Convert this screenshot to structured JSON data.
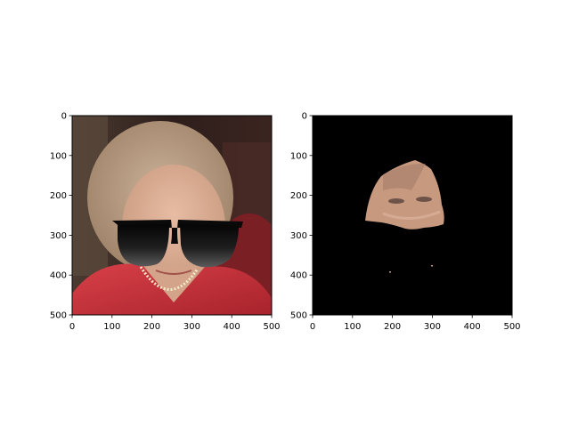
{
  "figure": {
    "background": "#ffffff",
    "subplot_count": 2
  },
  "chart_data": [
    {
      "type": "image",
      "content": "photo of a woman with blonde hair in a red jacket and pearl necklace, with black sunglasses overlaid on the face",
      "xlim": [
        0,
        500
      ],
      "ylim": [
        500,
        0
      ],
      "xticks": [
        0,
        100,
        200,
        300,
        400,
        500
      ],
      "yticks": [
        0,
        100,
        200,
        300,
        400,
        500
      ],
      "colors": {
        "jacket": "#c8323a",
        "hair": "#b89c80",
        "background": "#3a2622",
        "lenses": "#111111",
        "skin": "#d9aa90"
      }
    },
    {
      "type": "image",
      "content": "segmentation mask showing only the skin region of the face on a black background",
      "xlim": [
        0,
        500
      ],
      "ylim": [
        500,
        0
      ],
      "xticks": [
        0,
        100,
        200,
        300,
        400,
        500
      ],
      "yticks": [
        0,
        100,
        200,
        300,
        400,
        500
      ],
      "colors": {
        "background": "#000000",
        "skin": "#c79a80"
      }
    }
  ]
}
